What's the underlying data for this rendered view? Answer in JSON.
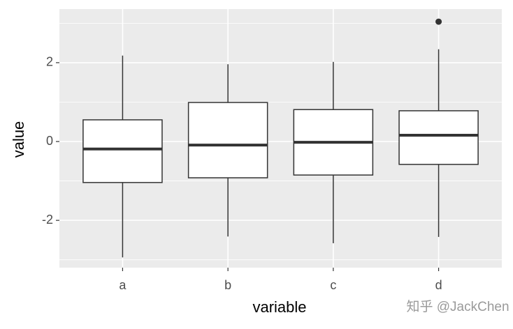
{
  "chart_data": {
    "type": "boxplot",
    "x_label": "variable",
    "y_label": "value",
    "categories": [
      "a",
      "b",
      "c",
      "d"
    ],
    "boxes": [
      {
        "whisker_low": -2.94,
        "q1": -1.04,
        "median": -0.19,
        "q3": 0.55,
        "whisker_high": 2.18,
        "outliers": []
      },
      {
        "whisker_low": -2.41,
        "q1": -0.92,
        "median": -0.09,
        "q3": 0.99,
        "whisker_high": 1.96,
        "outliers": []
      },
      {
        "whisker_low": -2.58,
        "q1": -0.85,
        "median": -0.02,
        "q3": 0.81,
        "whisker_high": 2.02,
        "outliers": []
      },
      {
        "whisker_low": -2.42,
        "q1": -0.58,
        "median": 0.16,
        "q3": 0.78,
        "whisker_high": 2.34,
        "outliers": [
          3.04
        ]
      }
    ],
    "ylim": [
      -3.2,
      3.36
    ],
    "yticks": [
      -2,
      0,
      2
    ],
    "minor_yticks": [
      -3,
      -1,
      1,
      3
    ],
    "grid": true,
    "box_fill": "#ffffff",
    "line_color": "#333333",
    "watermark": "知乎 @JackChen"
  }
}
